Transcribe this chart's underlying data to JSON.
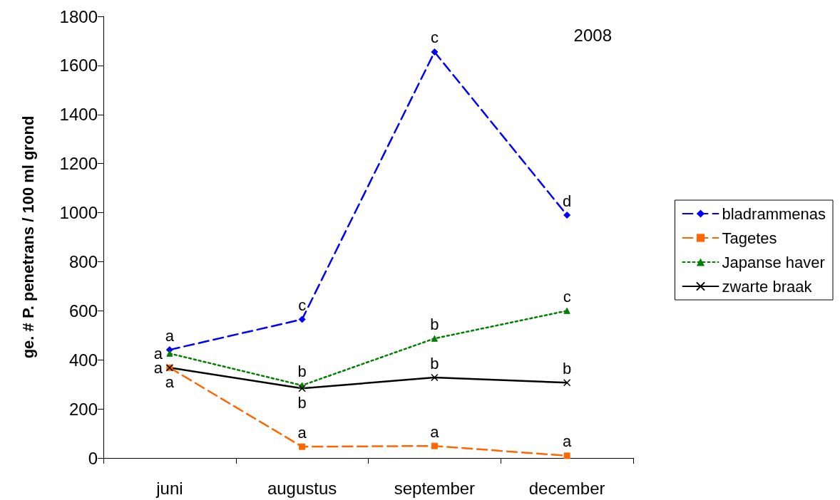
{
  "chart_data": {
    "type": "line",
    "ylabel": "ge. # P. penetrans / 100 ml grond",
    "categories": [
      "juni",
      "augustus",
      "september",
      "december"
    ],
    "ylim": [
      0,
      1800
    ],
    "yticks": [
      0,
      200,
      400,
      600,
      800,
      1000,
      1200,
      1400,
      1600,
      1800
    ],
    "grid": false,
    "legend": "right",
    "series": [
      {
        "name": "bladrammenas",
        "color": "#0000ff",
        "marker": "diamond",
        "line_style": "dashed",
        "values": [
          441,
          565,
          1655,
          990
        ]
      },
      {
        "name": "Tagetes",
        "color": "#ff6600",
        "marker": "square",
        "line_style": "dashed",
        "values": [
          368,
          46,
          49,
          9
        ]
      },
      {
        "name": "Japanse haver",
        "color": "#008000",
        "marker": "triangle",
        "line_style": "dotted",
        "values": [
          426,
          296,
          487,
          600
        ]
      },
      {
        "name": "zwarte braak",
        "color": "#000000",
        "marker": "cross",
        "line_style": "solid",
        "values": [
          368,
          284,
          328,
          307
        ]
      }
    ],
    "annotations": [
      "2008",
      {
        "text": "a",
        "x": "juni",
        "y": 441
      },
      {
        "text": "c",
        "x": "augustus",
        "y": 565
      },
      {
        "text": "c",
        "x": "september",
        "y": 1655
      },
      {
        "text": "d",
        "x": "december",
        "y": 990
      },
      {
        "text": "a",
        "x": "juni",
        "y": 368
      },
      {
        "text": "a",
        "x": "augustus",
        "y": 46
      },
      {
        "text": "a",
        "x": "september",
        "y": 49
      },
      {
        "text": "a",
        "x": "december",
        "y": 9
      },
      {
        "text": "a",
        "x": "juni",
        "y": 426
      },
      {
        "text": "b",
        "x": "augustus",
        "y": 296
      },
      {
        "text": "b",
        "x": "september",
        "y": 487
      },
      {
        "text": "c",
        "x": "december",
        "y": 600
      },
      {
        "text": "a",
        "x": "juni",
        "y": 368
      },
      {
        "text": "b",
        "x": "augustus",
        "y": 284
      },
      {
        "text": "b",
        "x": "september",
        "y": 328
      },
      {
        "text": "b",
        "x": "december",
        "y": 307
      }
    ]
  }
}
